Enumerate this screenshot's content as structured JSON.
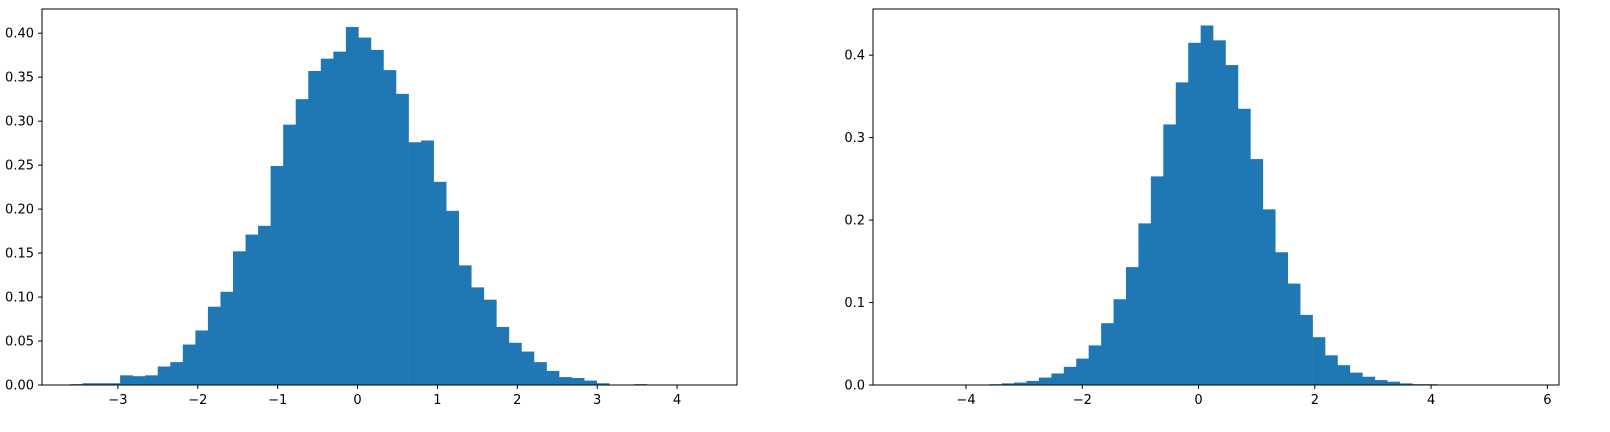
{
  "chart_data": [
    {
      "type": "bar",
      "title": "",
      "xlabel": "",
      "ylabel": "",
      "xlim": [
        -3.95,
        4.75
      ],
      "ylim": [
        0,
        0.4275
      ],
      "xticks": [
        -3,
        -2,
        -1,
        0,
        1,
        2,
        3,
        4
      ],
      "xtick_labels": [
        "−3",
        "−2",
        "−1",
        "0",
        "1",
        "2",
        "3",
        "4"
      ],
      "yticks": [
        0.0,
        0.05,
        0.1,
        0.15,
        0.2,
        0.25,
        0.3,
        0.35,
        0.4
      ],
      "ytick_labels": [
        "0.00",
        "0.05",
        "0.10",
        "0.15",
        "0.20",
        "0.25",
        "0.30",
        "0.35",
        "0.40"
      ],
      "bin_start": -3.6,
      "bin_width": 0.157,
      "values": [
        0.001,
        0.002,
        0.002,
        0.002,
        0.011,
        0.01,
        0.011,
        0.021,
        0.026,
        0.046,
        0.062,
        0.089,
        0.106,
        0.152,
        0.171,
        0.181,
        0.249,
        0.296,
        0.325,
        0.357,
        0.371,
        0.379,
        0.407,
        0.395,
        0.381,
        0.358,
        0.331,
        0.276,
        0.278,
        0.231,
        0.198,
        0.136,
        0.111,
        0.097,
        0.066,
        0.048,
        0.038,
        0.026,
        0.016,
        0.009,
        0.008,
        0.005,
        0.002,
        0.0,
        0.0,
        0.001
      ],
      "color": "#1f77b4",
      "grid": false
    },
    {
      "type": "bar",
      "title": "",
      "xlabel": "",
      "ylabel": "",
      "xlim": [
        -5.6,
        6.2
      ],
      "ylim": [
        0,
        0.456
      ],
      "xticks": [
        -4,
        -2,
        0,
        2,
        4,
        6
      ],
      "xtick_labels": [
        "−4",
        "−2",
        "0",
        "2",
        "4",
        "6"
      ],
      "yticks": [
        0.0,
        0.1,
        0.2,
        0.3,
        0.4
      ],
      "ytick_labels": [
        "0.0",
        "0.1",
        "0.2",
        "0.3",
        "0.4"
      ],
      "bin_start": -5.1,
      "bin_width": 0.214,
      "values": [
        0.0,
        0.0,
        0.0,
        0.0,
        0.0,
        0.0,
        0.0,
        0.001,
        0.002,
        0.003,
        0.005,
        0.009,
        0.014,
        0.022,
        0.032,
        0.048,
        0.075,
        0.104,
        0.143,
        0.196,
        0.253,
        0.316,
        0.367,
        0.415,
        0.436,
        0.418,
        0.388,
        0.335,
        0.274,
        0.213,
        0.161,
        0.123,
        0.085,
        0.058,
        0.036,
        0.024,
        0.015,
        0.01,
        0.006,
        0.004,
        0.002,
        0.001,
        0.001
      ],
      "color": "#1f77b4",
      "grid": false
    }
  ]
}
